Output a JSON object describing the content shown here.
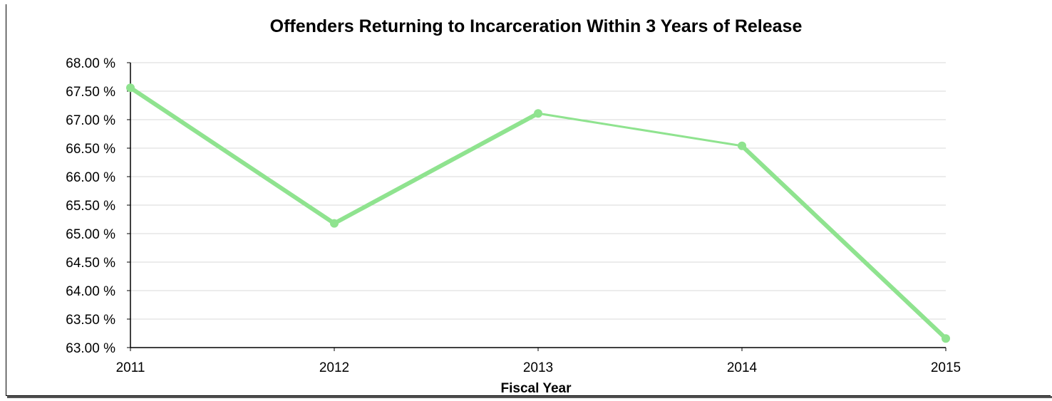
{
  "chart_data": {
    "type": "line",
    "title": "Offenders Returning to Incarceration Within 3 Years of Release",
    "xlabel": "Fiscal Year",
    "ylabel": "",
    "categories": [
      "2011",
      "2012",
      "2013",
      "2014",
      "2015"
    ],
    "series": [
      {
        "values": [
          67.56,
          65.18,
          67.11,
          66.54,
          63.16
        ],
        "color": "#8fe38f"
      }
    ],
    "ylim": [
      63.0,
      68.0
    ],
    "yticks": [
      68.0,
      67.5,
      67.0,
      66.5,
      66.0,
      65.5,
      65.0,
      64.5,
      64.0,
      63.5,
      63.0
    ],
    "ytick_labels": [
      "68.00 %",
      "67.50 %",
      "67.00 %",
      "66.50 %",
      "66.00 %",
      "65.50 %",
      "65.00 %",
      "64.50 %",
      "64.00 %",
      "63.50 %",
      "63.00 %"
    ],
    "grid": true,
    "legend": "none"
  }
}
